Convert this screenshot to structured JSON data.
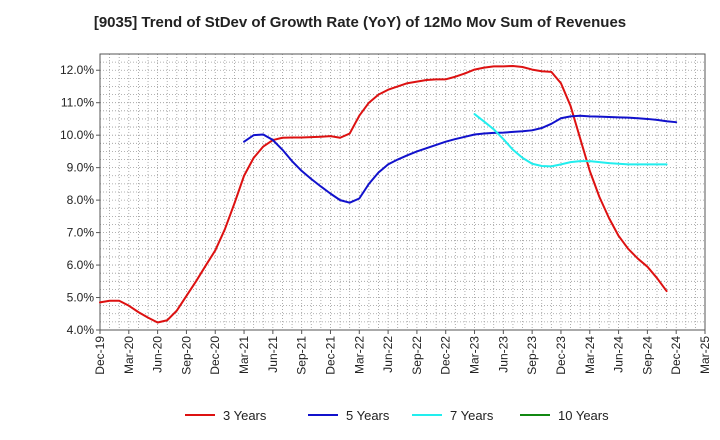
{
  "chart_data": {
    "type": "line",
    "title": "[9035]  Trend of StDev of Growth Rate (YoY) of 12Mo Mov Sum of Revenues",
    "xlabel": "",
    "ylabel": "",
    "ylim": [
      4.0,
      12.5
    ],
    "y_ticks": [
      4.0,
      5.0,
      6.0,
      7.0,
      8.0,
      9.0,
      10.0,
      11.0,
      12.0
    ],
    "y_tick_labels": [
      "4.0%",
      "5.0%",
      "6.0%",
      "7.0%",
      "8.0%",
      "9.0%",
      "10.0%",
      "11.0%",
      "12.0%"
    ],
    "x_start": "Dec-19",
    "x_months": 63,
    "x_tick_labels": [
      "Dec-19",
      "Mar-20",
      "Jun-20",
      "Sep-20",
      "Dec-20",
      "Mar-21",
      "Jun-21",
      "Sep-21",
      "Dec-21",
      "Mar-22",
      "Jun-22",
      "Sep-22",
      "Dec-22",
      "Mar-23",
      "Jun-23",
      "Sep-23",
      "Dec-23",
      "Mar-24",
      "Jun-24",
      "Sep-24",
      "Dec-24",
      "Mar-25"
    ],
    "grid": true,
    "legend_position": "bottom",
    "series": [
      {
        "name": "3 Years",
        "color": "#dd1111",
        "start_index": 0,
        "values": [
          4.85,
          4.9,
          4.9,
          4.75,
          4.55,
          4.38,
          4.23,
          4.3,
          4.6,
          5.05,
          5.5,
          5.98,
          6.45,
          7.1,
          7.9,
          8.75,
          9.3,
          9.65,
          9.85,
          9.92,
          9.93,
          9.93,
          9.94,
          9.95,
          9.97,
          9.92,
          10.05,
          10.6,
          11.0,
          11.25,
          11.4,
          11.5,
          11.6,
          11.65,
          11.7,
          11.72,
          11.72,
          11.8,
          11.9,
          12.02,
          12.08,
          12.12,
          12.12,
          12.13,
          12.1,
          12.02,
          11.97,
          11.95,
          11.6,
          10.9,
          9.9,
          8.9,
          8.1,
          7.45,
          6.9,
          6.5,
          6.2,
          5.95,
          5.6,
          5.2
        ]
      },
      {
        "name": "5 Years",
        "color": "#1111cc",
        "start_index": 15,
        "values": [
          9.8,
          10.0,
          10.02,
          9.85,
          9.55,
          9.2,
          8.9,
          8.65,
          8.42,
          8.2,
          8.0,
          7.92,
          8.05,
          8.5,
          8.85,
          9.1,
          9.25,
          9.38,
          9.5,
          9.6,
          9.7,
          9.8,
          9.88,
          9.95,
          10.02,
          10.05,
          10.07,
          10.08,
          10.1,
          10.12,
          10.15,
          10.22,
          10.35,
          10.52,
          10.58,
          10.6,
          10.58,
          10.57,
          10.56,
          10.55,
          10.54,
          10.52,
          10.5,
          10.47,
          10.43,
          10.4
        ]
      },
      {
        "name": "7 Years",
        "color": "#22eeee",
        "start_index": 39,
        "values": [
          10.65,
          10.42,
          10.18,
          9.88,
          9.55,
          9.3,
          9.12,
          9.05,
          9.04,
          9.1,
          9.17,
          9.2,
          9.2,
          9.17,
          9.14,
          9.12,
          9.1,
          9.1,
          9.1,
          9.1,
          9.1
        ]
      },
      {
        "name": "10 Years",
        "color": "#118811",
        "start_index": 0,
        "values": []
      }
    ]
  }
}
